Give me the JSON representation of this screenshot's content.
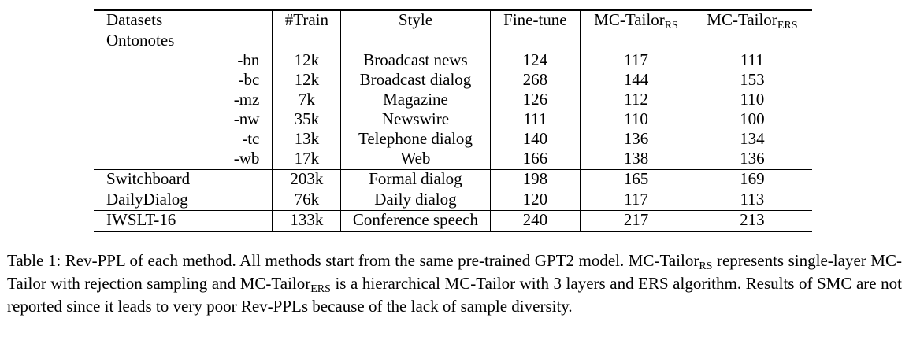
{
  "table": {
    "headers": {
      "datasets": "Datasets",
      "train": "#Train",
      "style": "Style",
      "finetune": "Fine-tune",
      "rs_base": "MC-Tailor",
      "rs_sub": "RS",
      "ers_base": "MC-Tailor",
      "ers_sub": "ERS"
    },
    "group_label": "Ontonotes",
    "rows": [
      {
        "dataset": "-bn",
        "train": "12k",
        "style": "Broadcast news",
        "finetune": "124",
        "rs": "117",
        "ers": "111"
      },
      {
        "dataset": "-bc",
        "train": "12k",
        "style": "Broadcast dialog",
        "finetune": "268",
        "rs": "144",
        "ers": "153"
      },
      {
        "dataset": "-mz",
        "train": "7k",
        "style": "Magazine",
        "finetune": "126",
        "rs": "112",
        "ers": "110"
      },
      {
        "dataset": "-nw",
        "train": "35k",
        "style": "Newswire",
        "finetune": "111",
        "rs": "110",
        "ers": "100"
      },
      {
        "dataset": "-tc",
        "train": "13k",
        "style": "Telephone dialog",
        "finetune": "140",
        "rs": "136",
        "ers": "134"
      },
      {
        "dataset": "-wb",
        "train": "17k",
        "style": "Web",
        "finetune": "166",
        "rs": "138",
        "ers": "136"
      },
      {
        "dataset": "Switchboard",
        "train": "203k",
        "style": "Formal dialog",
        "finetune": "198",
        "rs": "165",
        "ers": "169"
      },
      {
        "dataset": "DailyDialog",
        "train": "76k",
        "style": "Daily dialog",
        "finetune": "120",
        "rs": "117",
        "ers": "113"
      },
      {
        "dataset": "IWSLT-16",
        "train": "133k",
        "style": "Conference speech",
        "finetune": "240",
        "rs": "217",
        "ers": "213"
      }
    ]
  },
  "caption": {
    "p1": "Table 1: Rev-PPL of each method.  All methods start from the same pre-trained GPT2 model.  MC-Tailor",
    "s1": "RS",
    "p2": " represents single-layer MC-Tailor with rejection sampling and MC-Tailor",
    "s2": "ERS",
    "p3": " is a hierarchical MC-Tailor with 3 layers and ERS algorithm. Results of SMC are not reported since it leads to very poor Rev-PPLs because of the lack of sample diversity."
  }
}
